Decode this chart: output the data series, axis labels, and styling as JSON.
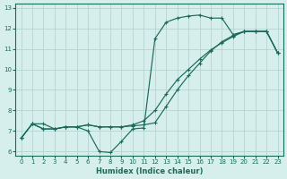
{
  "xlabel": "Humidex (Indice chaleur)",
  "xlim": [
    -0.5,
    23.5
  ],
  "ylim": [
    5.8,
    13.2
  ],
  "xticks": [
    0,
    1,
    2,
    3,
    4,
    5,
    6,
    7,
    8,
    9,
    10,
    11,
    12,
    13,
    14,
    15,
    16,
    17,
    18,
    19,
    20,
    21,
    22,
    23
  ],
  "yticks": [
    6,
    7,
    8,
    9,
    10,
    11,
    12,
    13
  ],
  "bg_color": "#d6eeec",
  "grid_color": "#b0cece",
  "line_color": "#1a6b5a",
  "line1_x": [
    0,
    1,
    2,
    3,
    4,
    5,
    6,
    7,
    8,
    9,
    10,
    11,
    12,
    13,
    14,
    15,
    16,
    17,
    18,
    19,
    20,
    21,
    22,
    23
  ],
  "line1_y": [
    6.65,
    7.35,
    7.35,
    7.1,
    7.2,
    7.2,
    7.0,
    6.0,
    5.95,
    6.5,
    7.1,
    7.15,
    11.5,
    12.3,
    12.5,
    12.6,
    12.65,
    12.5,
    12.5,
    11.7,
    11.85,
    11.85,
    11.85,
    10.8
  ],
  "line2_x": [
    0,
    1,
    2,
    3,
    4,
    5,
    6,
    7,
    8,
    9,
    10,
    11,
    12,
    13,
    14,
    15,
    16,
    17,
    18,
    19,
    20,
    21,
    22,
    23
  ],
  "line2_y": [
    6.65,
    7.35,
    7.1,
    7.1,
    7.2,
    7.2,
    7.3,
    7.2,
    7.2,
    7.2,
    7.25,
    7.3,
    7.4,
    8.2,
    9.0,
    9.7,
    10.3,
    10.9,
    11.35,
    11.65,
    11.85,
    11.85,
    11.85,
    10.8
  ],
  "line3_x": [
    0,
    1,
    2,
    3,
    4,
    5,
    6,
    7,
    8,
    9,
    10,
    11,
    12,
    13,
    14,
    15,
    16,
    17,
    18,
    19,
    20,
    21,
    22,
    23
  ],
  "line3_y": [
    6.65,
    7.35,
    7.1,
    7.1,
    7.2,
    7.2,
    7.3,
    7.2,
    7.2,
    7.2,
    7.3,
    7.5,
    8.0,
    8.8,
    9.5,
    10.0,
    10.5,
    10.95,
    11.3,
    11.6,
    11.85,
    11.85,
    11.85,
    10.8
  ],
  "figsize": [
    3.2,
    2.0
  ],
  "dpi": 100
}
